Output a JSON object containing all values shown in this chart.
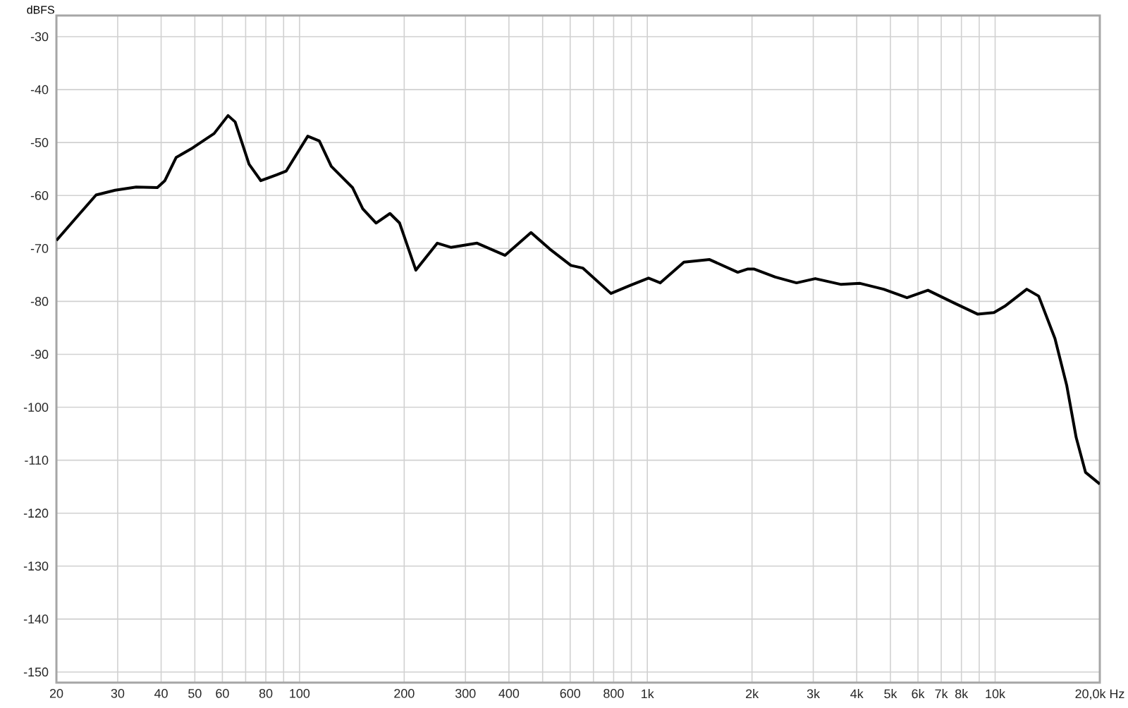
{
  "chart_data": {
    "type": "line",
    "ylabel": "dBFS",
    "log": "x",
    "grid": true,
    "marker": "none",
    "line_style": "solid",
    "xlim": [
      20,
      20000
    ],
    "ylim": [
      -152,
      -26
    ],
    "xticks": [
      20,
      30,
      40,
      50,
      60,
      {
        "value": 70,
        "label": null
      },
      80,
      {
        "value": 90,
        "label": null
      },
      100,
      200,
      300,
      400,
      {
        "value": 500,
        "label": null
      },
      600,
      {
        "value": 700,
        "label": null
      },
      800,
      {
        "value": 900,
        "label": null
      },
      {
        "value": 1000,
        "label": "1k"
      },
      {
        "value": 2000,
        "label": "2k"
      },
      {
        "value": 3000,
        "label": "3k"
      },
      {
        "value": 4000,
        "label": "4k"
      },
      {
        "value": 5000,
        "label": "5k"
      },
      {
        "value": 6000,
        "label": "6k"
      },
      {
        "value": 7000,
        "label": "7k"
      },
      {
        "value": 8000,
        "label": "8k"
      },
      {
        "value": 9000,
        "label": null
      },
      {
        "value": 10000,
        "label": "10k"
      },
      {
        "value": 20000,
        "label": "20,0k Hz"
      }
    ],
    "yticks": [
      -30,
      -40,
      -50,
      -60,
      -70,
      -80,
      -90,
      -100,
      -110,
      -120,
      -130,
      -140,
      -150
    ],
    "series": [
      {
        "color": "#000000",
        "x": [
          20,
          23,
          26,
          29.5,
          33.9,
          39,
          41,
          44.2,
          49.3,
          56.8,
          62.3,
          65.3,
          71.6,
          77.4,
          86,
          91.5,
          105.6,
          114,
          123.4,
          142,
          152,
          166,
          182,
          194,
          216,
          249,
          273,
          324,
          390,
          463,
          524,
          603,
          652,
          786,
          891,
          1008,
          1090,
          1274,
          1510,
          1820,
          1940,
          2030,
          2333,
          2685,
          3040,
          3610,
          4090,
          4780,
          5580,
          6410,
          7620,
          8900,
          9920,
          10720,
          12330,
          13340,
          14860,
          16070,
          17100,
          18200,
          20000
        ],
        "values": [
          -68.5,
          -63.9,
          -59.9,
          -59.0,
          -58.4,
          -58.5,
          -57.2,
          -52.8,
          -51.0,
          -48.3,
          -44.9,
          -46.1,
          -54.1,
          -57.2,
          -56.1,
          -55.4,
          -48.8,
          -49.7,
          -54.5,
          -58.5,
          -62.5,
          -65.2,
          -63.4,
          -65.2,
          -74.1,
          -69.0,
          -69.8,
          -69.0,
          -71.3,
          -67.0,
          -70.1,
          -73.2,
          -73.7,
          -78.5,
          -77.0,
          -75.6,
          -76.5,
          -72.6,
          -72.1,
          -74.5,
          -73.9,
          -73.9,
          -75.4,
          -76.5,
          -75.7,
          -76.8,
          -76.6,
          -77.7,
          -79.3,
          -77.9,
          -80.3,
          -82.4,
          -82.1,
          -80.8,
          -77.7,
          -79.0,
          -87.0,
          -95.9,
          -105.7,
          -112.3,
          -114.5
        ]
      }
    ]
  }
}
